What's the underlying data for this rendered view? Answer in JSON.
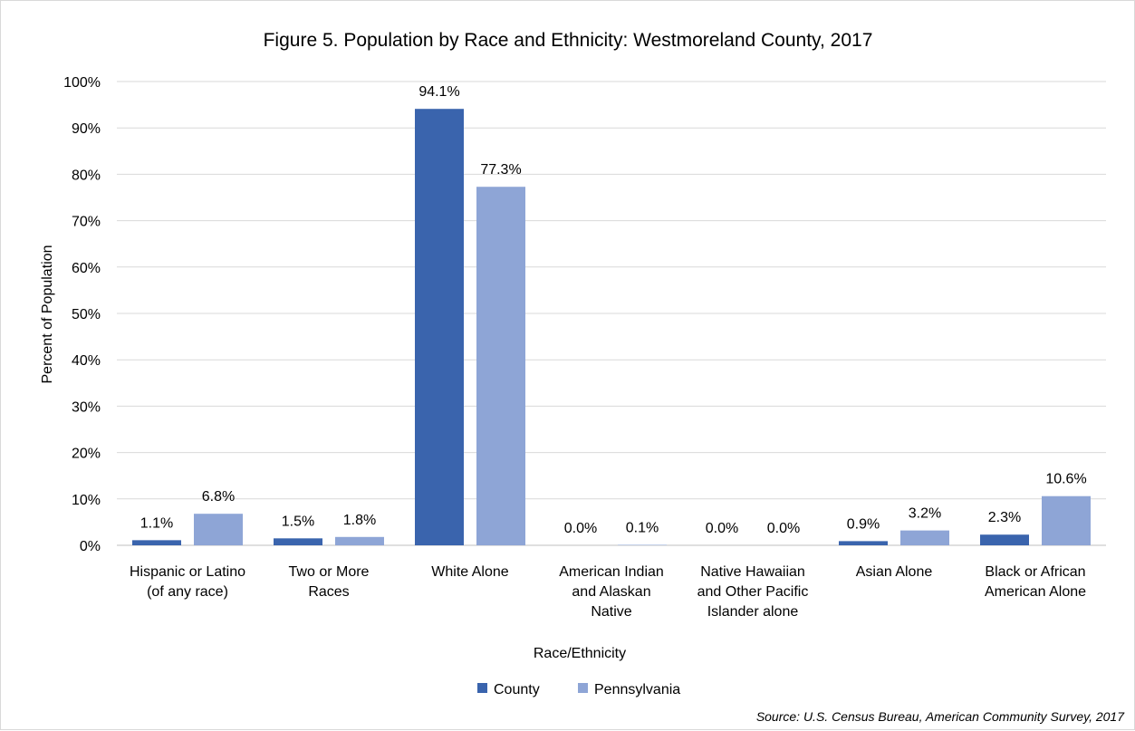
{
  "chart_data": {
    "type": "bar",
    "title": "Figure 5. Population by Race and Ethnicity: Westmoreland County, 2017",
    "xlabel": "Race/Ethnicity",
    "ylabel": "Percent of Population",
    "ylim": [
      0,
      100
    ],
    "yticks": [
      "0%",
      "10%",
      "20%",
      "30%",
      "40%",
      "50%",
      "60%",
      "70%",
      "80%",
      "90%",
      "100%"
    ],
    "grid": true,
    "legend_position": "bottom",
    "categories": [
      [
        "Hispanic or Latino",
        "(of any race)"
      ],
      [
        "Two or More",
        "Races"
      ],
      [
        "White Alone"
      ],
      [
        "American Indian",
        "and Alaskan",
        "Native"
      ],
      [
        "Native Hawaiian",
        "and Other Pacific",
        "Islander alone"
      ],
      [
        "Asian Alone"
      ],
      [
        "Black or African",
        "American Alone"
      ]
    ],
    "series": [
      {
        "name": "County",
        "color": "#3a64ad",
        "values": [
          1.1,
          1.5,
          94.1,
          0.0,
          0.0,
          0.9,
          2.3
        ],
        "labels": [
          "1.1%",
          "1.5%",
          "94.1%",
          "0.0%",
          "0.0%",
          "0.9%",
          "2.3%"
        ]
      },
      {
        "name": "Pennsylvania",
        "color": "#8ea5d6",
        "values": [
          6.8,
          1.8,
          77.3,
          0.1,
          0.0,
          3.2,
          10.6
        ],
        "labels": [
          "6.8%",
          "1.8%",
          "77.3%",
          "0.1%",
          "0.0%",
          "3.2%",
          "10.6%"
        ]
      }
    ],
    "source": "Source: U.S. Census Bureau, American Community Survey, 2017"
  }
}
